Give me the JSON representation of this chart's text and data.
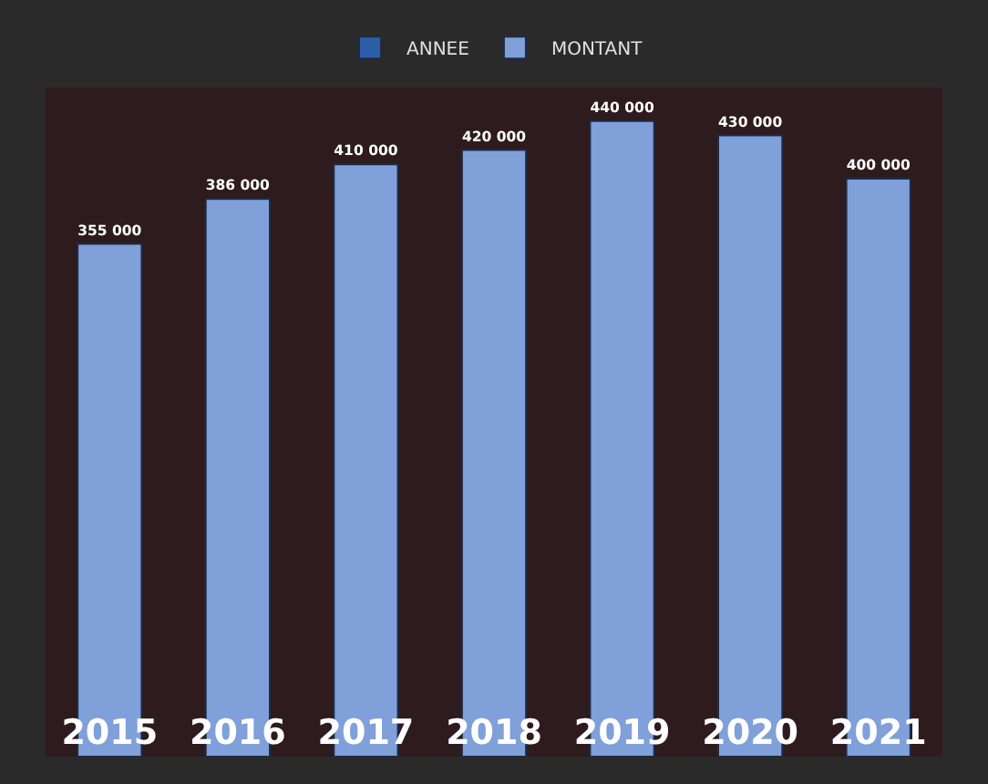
{
  "chart_data": {
    "type": "bar",
    "categories": [
      "2015",
      "2016",
      "2017",
      "2018",
      "2019",
      "2020",
      "2021"
    ],
    "series": [
      {
        "name": "ANNEE",
        "color": "#2d5fa8",
        "values": [
          null,
          null,
          null,
          null,
          null,
          null,
          null
        ]
      },
      {
        "name": "MONTANT",
        "color": "#7fa0d8",
        "values": [
          355000,
          386000,
          410000,
          420000,
          440000,
          430000,
          400000
        ],
        "value_labels": [
          "355 000",
          "386 000",
          "410 000",
          "420 000",
          "440 000",
          "430 000",
          "400 000"
        ]
      }
    ],
    "tick_labels": "x",
    "legend": "top"
  }
}
